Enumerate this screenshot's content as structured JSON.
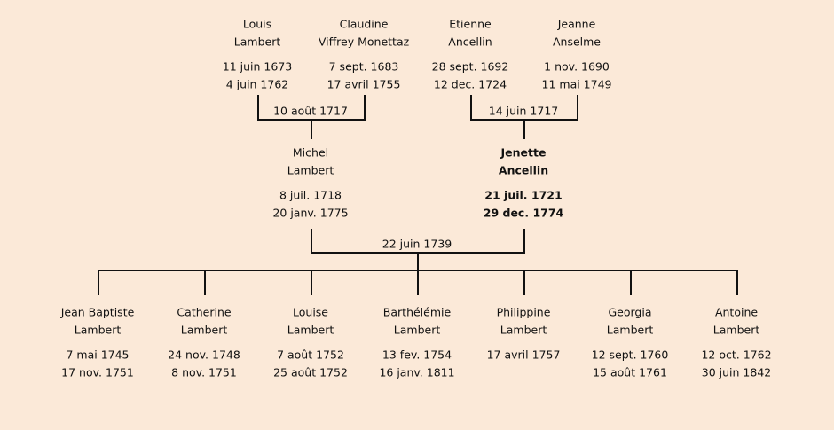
{
  "grandparents": [
    {
      "first": "Louis",
      "last": "Lambert",
      "birth": "11 juin 1673",
      "death": "4 juin 1762"
    },
    {
      "first": "Claudine",
      "last": "Viffrey Monettaz",
      "birth": "7 sept. 1683",
      "death": "17 avril 1755"
    },
    {
      "first": "Etienne",
      "last": "Ancellin",
      "birth": "28 sept. 1692",
      "death": "12 dec. 1724"
    },
    {
      "first": "Jeanne",
      "last": "Anselme",
      "birth": "1 nov. 1690",
      "death": "11 mai 1749"
    }
  ],
  "grandparent_marriages": [
    "10 août 1717",
    "14 juin 1717"
  ],
  "parents": [
    {
      "first": "Michel",
      "last": "Lambert",
      "birth": "8 juil. 1718",
      "death": "20 janv. 1775",
      "highlighted": false
    },
    {
      "first": "Jenette",
      "last": "Ancellin",
      "birth": "21 juil. 1721",
      "death": "29 dec. 1774",
      "highlighted": true
    }
  ],
  "parent_marriage": "22 juin 1739",
  "children": [
    {
      "first": "Jean Baptiste",
      "last": "Lambert",
      "birth": "7 mai 1745",
      "death": "17 nov. 1751"
    },
    {
      "first": "Catherine",
      "last": "Lambert",
      "birth": "24 nov. 1748",
      "death": "8 nov. 1751"
    },
    {
      "first": "Louise",
      "last": "Lambert",
      "birth": "7 août 1752",
      "death": "25 août 1752"
    },
    {
      "first": "Barthélémie",
      "last": "Lambert",
      "birth": "13 fev. 1754",
      "death": "16 janv. 1811"
    },
    {
      "first": "Philippine",
      "last": "Lambert",
      "birth": "17 avril 1757",
      "death": ""
    },
    {
      "first": "Georgia",
      "last": "Lambert",
      "birth": "12 sept. 1760",
      "death": "15 août 1761"
    },
    {
      "first": "Antoine",
      "last": "Lambert",
      "birth": "12 oct. 1762",
      "death": "30 juin 1842"
    }
  ]
}
